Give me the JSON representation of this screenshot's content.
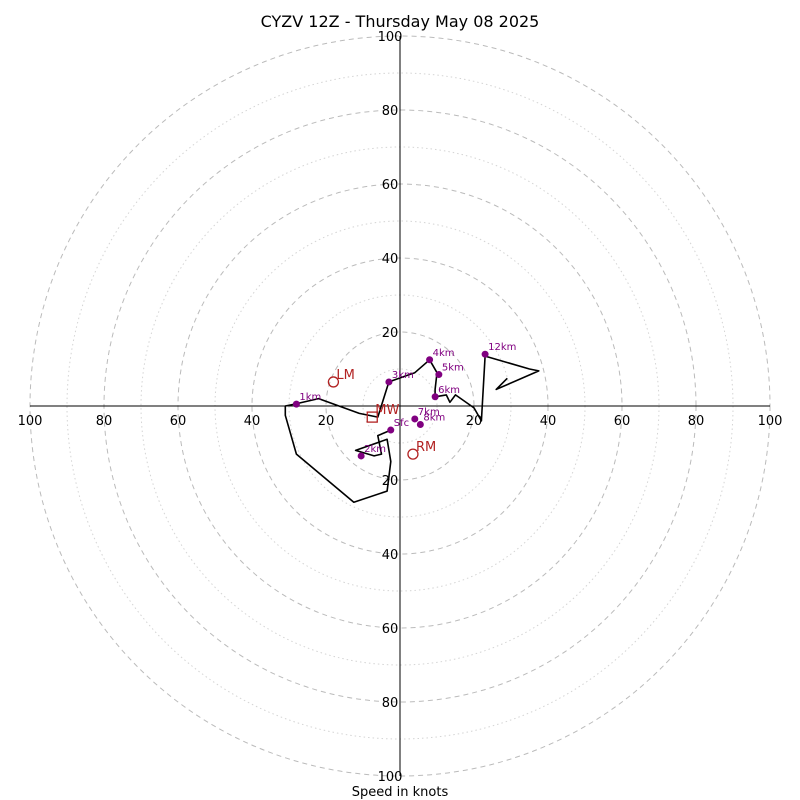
{
  "title": "CYZV 12Z - Thursday May 08 2025",
  "xlabel": "Speed in knots",
  "colors": {
    "hodograph": "#000000",
    "height_markers": "#800080",
    "storm_motion": "#b22222",
    "rings": "#bbbbbb"
  },
  "chart_data": {
    "type": "line",
    "title": "CYZV 12Z - Thursday May 08 2025",
    "xlabel": "Speed in knots",
    "ylabel": "",
    "xlim": [
      -100,
      100
    ],
    "ylim": [
      -100,
      100
    ],
    "grid": true,
    "rings": [
      20,
      40,
      60,
      80,
      100
    ],
    "minor_rings": [
      10,
      30,
      50,
      70,
      90
    ],
    "ticks": {
      "top": [
        "100",
        "80",
        "60",
        "40",
        "20"
      ],
      "bottom": [
        "20",
        "40",
        "60",
        "80",
        "100"
      ],
      "left": [
        "100",
        "80",
        "60",
        "40",
        "20"
      ],
      "right": [
        "20",
        "40",
        "60",
        "80",
        "100"
      ]
    },
    "trace": [
      [
        -2.5,
        -6.5
      ],
      [
        -6,
        -8
      ],
      [
        -5,
        -13
      ],
      [
        -7,
        -13.5
      ],
      [
        -12,
        -12
      ],
      [
        -3.5,
        -9
      ],
      [
        -2.5,
        -15
      ],
      [
        -3.5,
        -23
      ],
      [
        -12.5,
        -26
      ],
      [
        -28,
        -13
      ],
      [
        -31,
        -2.5
      ],
      [
        -31,
        0
      ],
      [
        -28.5,
        0.5
      ],
      [
        -22,
        2
      ],
      [
        -11,
        -2
      ],
      [
        -6,
        -3
      ],
      [
        -3,
        6.5
      ],
      [
        2.5,
        8.5
      ],
      [
        4,
        9
      ],
      [
        8,
        12.5
      ],
      [
        10,
        9
      ],
      [
        9.5,
        4.5
      ],
      [
        9.5,
        2.5
      ],
      [
        12.5,
        3
      ],
      [
        13.5,
        1
      ],
      [
        15,
        3
      ],
      [
        20,
        -0.5
      ],
      [
        22,
        -4
      ],
      [
        23,
        13.5
      ],
      [
        35,
        10
      ],
      [
        37.5,
        9.5
      ],
      [
        26,
        4.5
      ],
      [
        29,
        7.5
      ]
    ],
    "points": [
      {
        "label": "Sfc",
        "x": -2.5,
        "y": -6.5
      },
      {
        "label": "1km",
        "x": -28,
        "y": 0.5
      },
      {
        "label": "2km",
        "x": -10.5,
        "y": -13.5
      },
      {
        "label": "3km",
        "x": -3,
        "y": 6.5
      },
      {
        "label": "4km",
        "x": 8,
        "y": 12.5
      },
      {
        "label": "5km",
        "x": 10.5,
        "y": 8.5
      },
      {
        "label": "6km",
        "x": 9.5,
        "y": 2.5
      },
      {
        "label": "7km",
        "x": 4,
        "y": -3.5
      },
      {
        "label": "8km",
        "x": 5.5,
        "y": -5
      },
      {
        "label": "12km",
        "x": 23,
        "y": 14
      }
    ],
    "storm_motion": [
      {
        "label": "LM",
        "x": -18,
        "y": 6.5,
        "marker": "circle"
      },
      {
        "label": "RM",
        "x": 3.5,
        "y": -13,
        "marker": "circle"
      },
      {
        "label": "MW",
        "x": -7.5,
        "y": -3,
        "marker": "square"
      }
    ]
  }
}
